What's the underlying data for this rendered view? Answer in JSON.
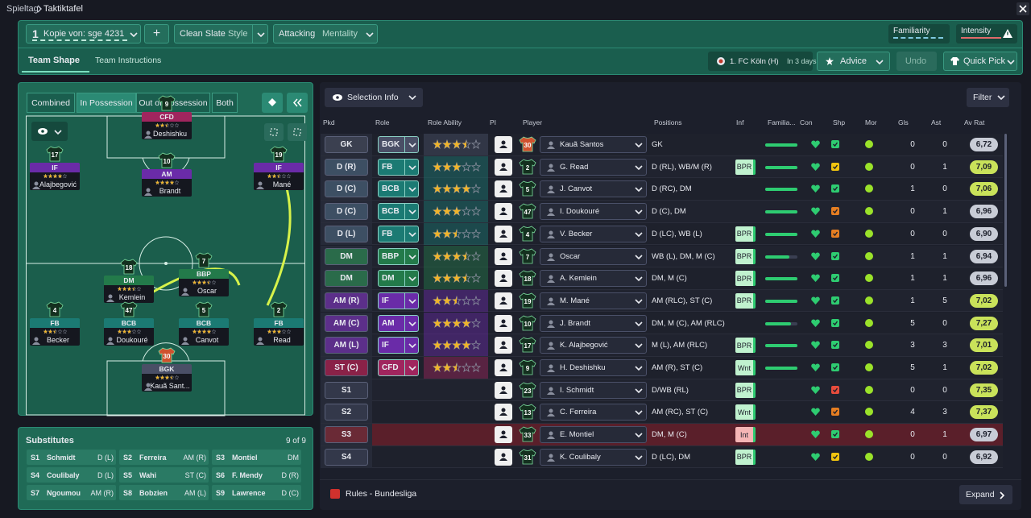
{
  "breadcrumb": [
    "Spieltag",
    "Taktiktafel"
  ],
  "toolbar": {
    "tactic_slot": "1",
    "tactic_name": "Kopie von: sge 4231",
    "add": "+",
    "shape_label": "Clean Slate",
    "shape_sub": "Style",
    "mentality_value": "Attacking",
    "mentality_label": "Mentality",
    "familiarity": "Familiarity",
    "intensity": "Intensity"
  },
  "tabs": [
    "Team Shape",
    "Team Instructions"
  ],
  "next_match": {
    "opponent": "1. FC Köln (H)",
    "when": "In 3 days"
  },
  "actions": {
    "advice": "Advice",
    "undo": "Undo",
    "quick_pick": "Quick Pick"
  },
  "pitch_tabs": [
    "Combined",
    "In Possession",
    "Out of Possession",
    "Both"
  ],
  "pitch_players": [
    {
      "number": 9,
      "role": "CFD",
      "name": "Deshishku",
      "stars": 2.5,
      "color": "#a0255e"
    },
    {
      "number": 17,
      "role": "IF",
      "name": "Alajbegović",
      "stars": 4,
      "color": "#6a2ba8"
    },
    {
      "number": 10,
      "role": "AM",
      "name": "Brandt",
      "stars": 4,
      "color": "#6a2ba8"
    },
    {
      "number": 19,
      "role": "IF",
      "name": "Mané",
      "stars": 2.5,
      "color": "#6a2ba8"
    },
    {
      "number": 18,
      "role": "DM",
      "name": "Kemlein",
      "stars": 3.5,
      "color": "#237a4a"
    },
    {
      "number": 7,
      "role": "BBP",
      "name": "Oscar",
      "stars": 3.5,
      "color": "#237a4a"
    },
    {
      "number": 4,
      "role": "FB",
      "name": "Becker",
      "stars": 2.5,
      "color": "#1b7a73"
    },
    {
      "number": 47,
      "role": "BCB",
      "name": "Doukouré",
      "stars": 3,
      "color": "#1b7a73"
    },
    {
      "number": 5,
      "role": "BCB",
      "name": "Canvot",
      "stars": 4,
      "color": "#1b7a73"
    },
    {
      "number": 2,
      "role": "FB",
      "name": "Read",
      "stars": 3,
      "color": "#1b7a73"
    },
    {
      "number": 30,
      "role": "BGK",
      "name": "Kauã Sant...",
      "stars": 3.5,
      "color": "#4a4f66"
    }
  ],
  "substitutes": {
    "title": "Substitutes",
    "count": "9 of 9",
    "players": [
      [
        "S1",
        "Schmidt",
        "D (L)"
      ],
      [
        "S2",
        "Ferreira",
        "AM (R)"
      ],
      [
        "S3",
        "Montiel",
        "DM"
      ],
      [
        "S4",
        "Coulibaly",
        "D (L)"
      ],
      [
        "S5",
        "Wahi",
        "ST (C)"
      ],
      [
        "S6",
        "F. Mendy",
        "D (R)"
      ],
      [
        "S7",
        "Ngoumou",
        "AM (R)"
      ],
      [
        "S8",
        "Bobzien",
        "AM (L)"
      ],
      [
        "S9",
        "Lawrence",
        "D (C)"
      ]
    ]
  },
  "selection": {
    "info": "Selection Info",
    "filter": "Filter",
    "columns": [
      "Pkd",
      "Role",
      "Role Ability",
      "PI",
      "Player",
      "Positions",
      "Inf",
      "Familia...",
      "Con",
      "Shp",
      "Mor",
      "Gls",
      "Ast",
      "Av Rat"
    ],
    "rows": [
      {
        "pkd": "GK",
        "role": "BGK",
        "stars": 3.5,
        "number": 30,
        "player": "Kauã Santos",
        "positions": "GK",
        "inf": null,
        "fam": 1,
        "gls": 0,
        "ast": 0,
        "rating": "6,72",
        "color": "#3b4050",
        "role_color": "#4a4f66",
        "shp": "#2ecc71",
        "rating_color": "#c8ccd6"
      },
      {
        "pkd": "D (R)",
        "role": "FB",
        "stars": 3,
        "number": 2,
        "player": "G. Read",
        "positions": "D (RL), WB/M (R)",
        "inf": "BPR",
        "fam": 1,
        "gls": 0,
        "ast": 1,
        "rating": "7,09",
        "color": "#3d4f63",
        "role_color": "#1b7a73",
        "shp": "#f1c40f",
        "rating_color": "#c9e25a"
      },
      {
        "pkd": "D (C)",
        "role": "BCB",
        "stars": 4,
        "number": 5,
        "player": "J. Canvot",
        "positions": "D (RC), DM",
        "inf": null,
        "fam": 1,
        "gls": 1,
        "ast": 0,
        "rating": "7,06",
        "color": "#3d4f63",
        "role_color": "#1b7a73",
        "shp": "#2ecc71",
        "rating_color": "#c9e25a"
      },
      {
        "pkd": "D (C)",
        "role": "BCB",
        "stars": 3,
        "number": 47,
        "player": "I. Doukouré",
        "positions": "D (C), DM",
        "inf": null,
        "fam": 1,
        "gls": 0,
        "ast": 1,
        "rating": "6,96",
        "color": "#3d4f63",
        "role_color": "#1b7a73",
        "shp": "#e67e22",
        "rating_color": "#c8ccd6"
      },
      {
        "pkd": "D (L)",
        "role": "FB",
        "stars": 2.5,
        "number": 4,
        "player": "V. Becker",
        "positions": "D (LC), WB (L)",
        "inf": "BPR",
        "fam": 1,
        "gls": 0,
        "ast": 0,
        "rating": "6,90",
        "color": "#3d4f63",
        "role_color": "#1b7a73",
        "shp": "#e67e22",
        "rating_color": "#c8ccd6"
      },
      {
        "pkd": "DM",
        "role": "BBP",
        "stars": 3.5,
        "number": 7,
        "player": "Oscar",
        "positions": "WB (L), DM, M (C)",
        "inf": "BPR",
        "fam": 0.75,
        "gls": 1,
        "ast": 1,
        "rating": "6,94",
        "color": "#2a6b4a",
        "role_color": "#237a4a",
        "shp": "#2ecc71",
        "rating_color": "#c8ccd6"
      },
      {
        "pkd": "DM",
        "role": "DM",
        "stars": 3.5,
        "number": 18,
        "player": "A. Kemlein",
        "positions": "DM, M (C)",
        "inf": "BPR",
        "fam": 1,
        "gls": 1,
        "ast": 1,
        "rating": "6,96",
        "color": "#2a6b4a",
        "role_color": "#237a4a",
        "shp": "#2ecc71",
        "rating_color": "#c8ccd6"
      },
      {
        "pkd": "AM (R)",
        "role": "IF",
        "stars": 2.5,
        "number": 19,
        "player": "M. Mané",
        "positions": "AM (RLC), ST (C)",
        "inf": "BPR",
        "fam": 1,
        "gls": 1,
        "ast": 5,
        "rating": "7,02",
        "color": "#5c2f8a",
        "role_color": "#6a2ba8",
        "shp": "#2ecc71",
        "rating_color": "#c9e25a"
      },
      {
        "pkd": "AM (C)",
        "role": "AM",
        "stars": 4,
        "number": 10,
        "player": "J. Brandt",
        "positions": "DM, M (C), AM (RLC)",
        "inf": null,
        "fam": 0.8,
        "gls": 5,
        "ast": 0,
        "rating": "7,27",
        "color": "#5c2f8a",
        "role_color": "#6a2ba8",
        "shp": "#2ecc71",
        "rating_color": "#c9e25a"
      },
      {
        "pkd": "AM (L)",
        "role": "IF",
        "stars": 4,
        "number": 17,
        "player": "K. Alajbegović",
        "positions": "M (L), AM (RLC)",
        "inf": "BPR",
        "fam": 1,
        "gls": 3,
        "ast": 3,
        "rating": "7,01",
        "color": "#5c2f8a",
        "role_color": "#6a2ba8",
        "shp": "#2ecc71",
        "rating_color": "#c9e25a"
      },
      {
        "pkd": "ST (C)",
        "role": "CFD",
        "stars": 2.5,
        "number": 9,
        "player": "H. Deshishku",
        "positions": "AM (R), ST (C)",
        "inf": "Wnt",
        "fam": 1,
        "gls": 5,
        "ast": 1,
        "rating": "7,02",
        "color": "#8a2248",
        "role_color": "#a0255e",
        "shp": "#2ecc71",
        "rating_color": "#c9e25a"
      },
      {
        "pkd": "S1",
        "role": null,
        "stars": null,
        "number": 23,
        "player": "I. Schmidt",
        "positions": "D/WB (RL)",
        "inf": "BPR",
        "fam": null,
        "gls": 0,
        "ast": 0,
        "rating": "7,35",
        "color": "#33384a",
        "role_color": null,
        "shp": "#e74c3c",
        "rating_color": "#c9e25a"
      },
      {
        "pkd": "S2",
        "role": null,
        "stars": null,
        "number": 13,
        "player": "C. Ferreira",
        "positions": "AM (RC), ST (C)",
        "inf": "Wnt",
        "fam": null,
        "gls": 4,
        "ast": 3,
        "rating": "7,37",
        "color": "#33384a",
        "role_color": null,
        "shp": "#e67e22",
        "rating_color": "#c9e25a"
      },
      {
        "pkd": "S3",
        "role": null,
        "stars": null,
        "number": 33,
        "player": "E. Montiel",
        "positions": "DM, M (C)",
        "inf": "Int",
        "fam": null,
        "gls": 0,
        "ast": 1,
        "rating": "6,97",
        "color": "#6a2a36",
        "role_color": null,
        "shp": "#2ecc71",
        "rating_color": "#c8ccd6",
        "bg": "#5a1f2a"
      },
      {
        "pkd": "S4",
        "role": null,
        "stars": null,
        "number": 31,
        "player": "K. Coulibaly",
        "positions": "D (LC), DM",
        "inf": "BPR",
        "fam": null,
        "gls": 0,
        "ast": 0,
        "rating": "6,92",
        "color": "#33384a",
        "role_color": null,
        "shp": "#f1c40f",
        "rating_color": "#c8ccd6"
      }
    ]
  },
  "footer": {
    "rules": "Rules - Bundesliga",
    "expand": "Expand"
  }
}
